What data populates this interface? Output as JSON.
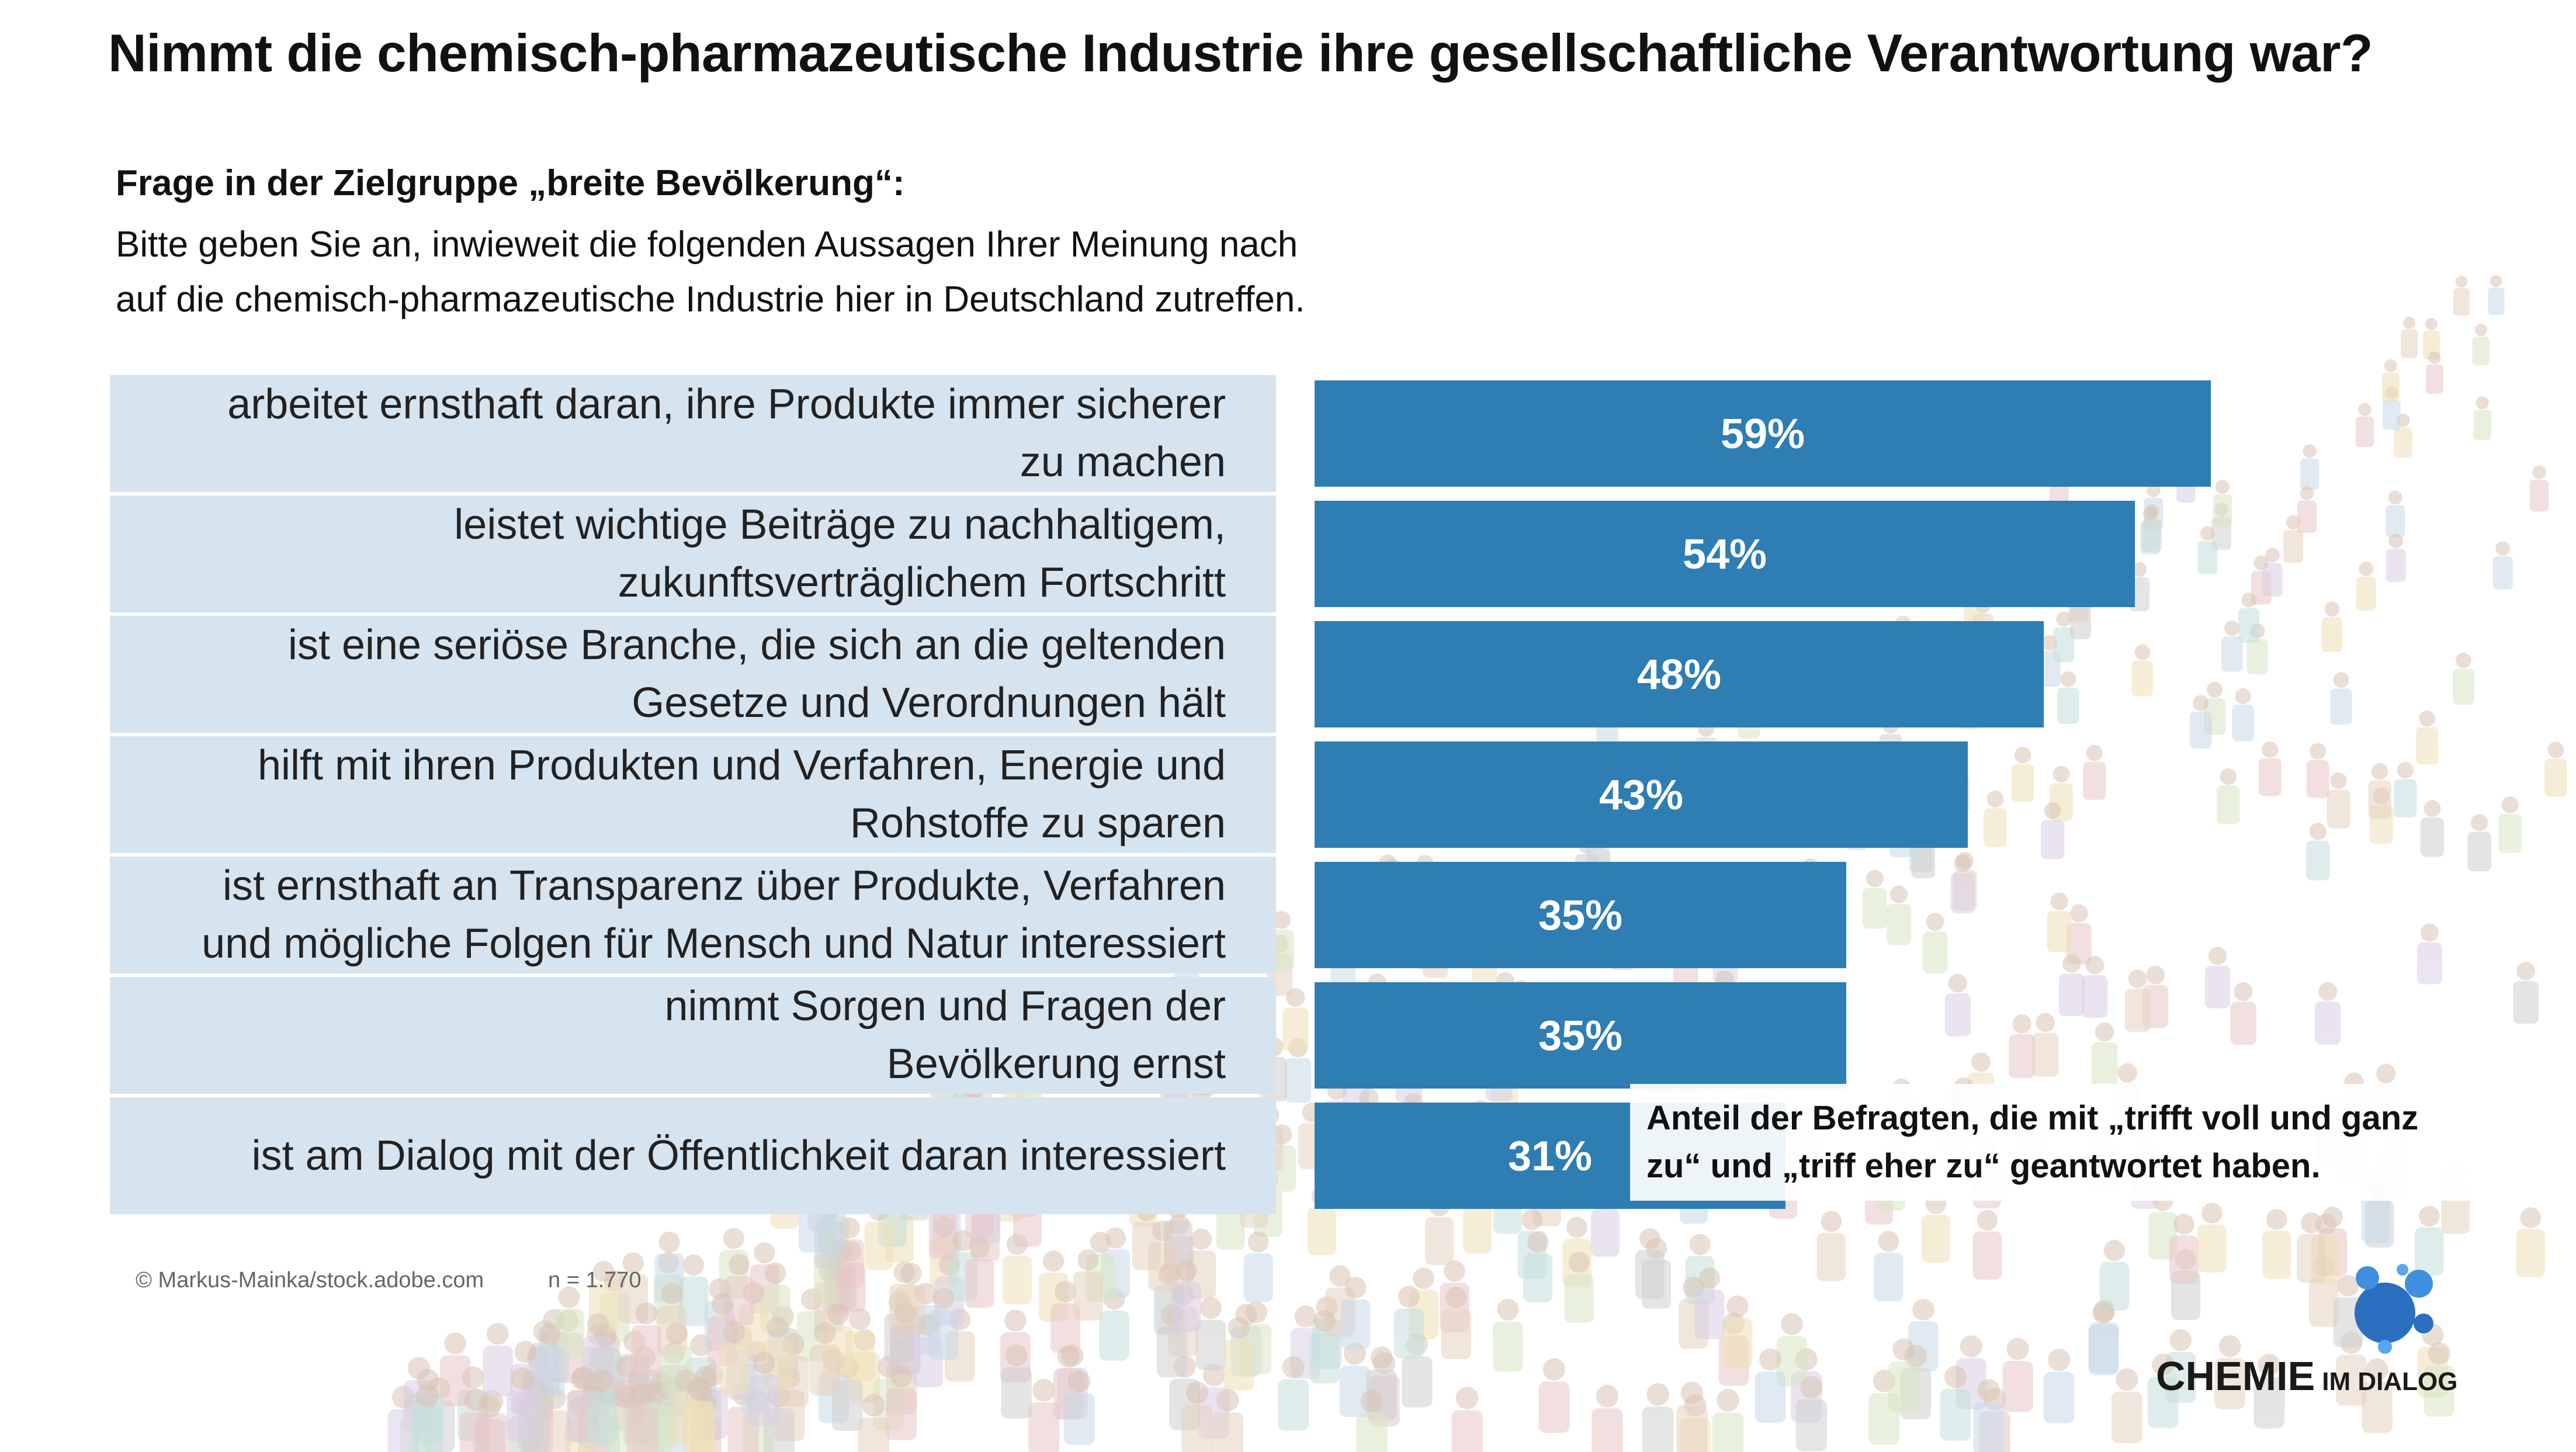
{
  "title": "Nimmt die chemisch-pharmazeutische Industrie ihre gesellschaftliche Verantwortung war?",
  "question": {
    "heading": "Frage in der Zielgruppe „breite Bevölkerung“:",
    "text": "Bitte geben Sie an, inwieweit die folgenden Aussagen Ihrer Meinung nach\nauf die chemisch-pharmazeutische Industrie hier in Deutschland zutreffen."
  },
  "chart_data": {
    "type": "bar",
    "orientation": "horizontal",
    "categories": [
      "arbeitet ernsthaft daran, ihre Produkte immer sicherer\nzu machen",
      "leistet wichtige Beiträge zu nachhaltigem,\nzukunftsverträglichem Fortschritt",
      "ist eine seriöse Branche, die sich an die geltenden\nGesetze und Verordnungen hält",
      "hilft mit ihren Produkten und Verfahren, Energie und\nRohstoffe zu sparen",
      "ist ernsthaft an Transparenz über Produkte, Verfahren\nund mögliche Folgen für Mensch und Natur interessiert",
      "nimmt Sorgen und Fragen der\nBevölkerung  ernst",
      "ist am Dialog mit der Öffentlichkeit daran interessiert"
    ],
    "values": [
      59,
      54,
      48,
      43,
      35,
      35,
      31
    ],
    "value_labels": [
      "59%",
      "54%",
      "48%",
      "43%",
      "35%",
      "35%",
      "31%"
    ],
    "unit": "%",
    "bar_color": "#2e7db3",
    "label_bg_color": "#d6e4ef",
    "grid": false,
    "legend": "none"
  },
  "note": "Anteil der Befragten, die mit „trifft voll und ganz\nzu“ und „triff eher zu“ geantwortet haben.",
  "footer": {
    "credit": "© Markus-Mainka/stock.adobe.com",
    "sample": "n = 1.770"
  },
  "logo": {
    "main": "CHEMIE",
    "sub": "IM DIALOG",
    "color": "#2a6fc0"
  }
}
